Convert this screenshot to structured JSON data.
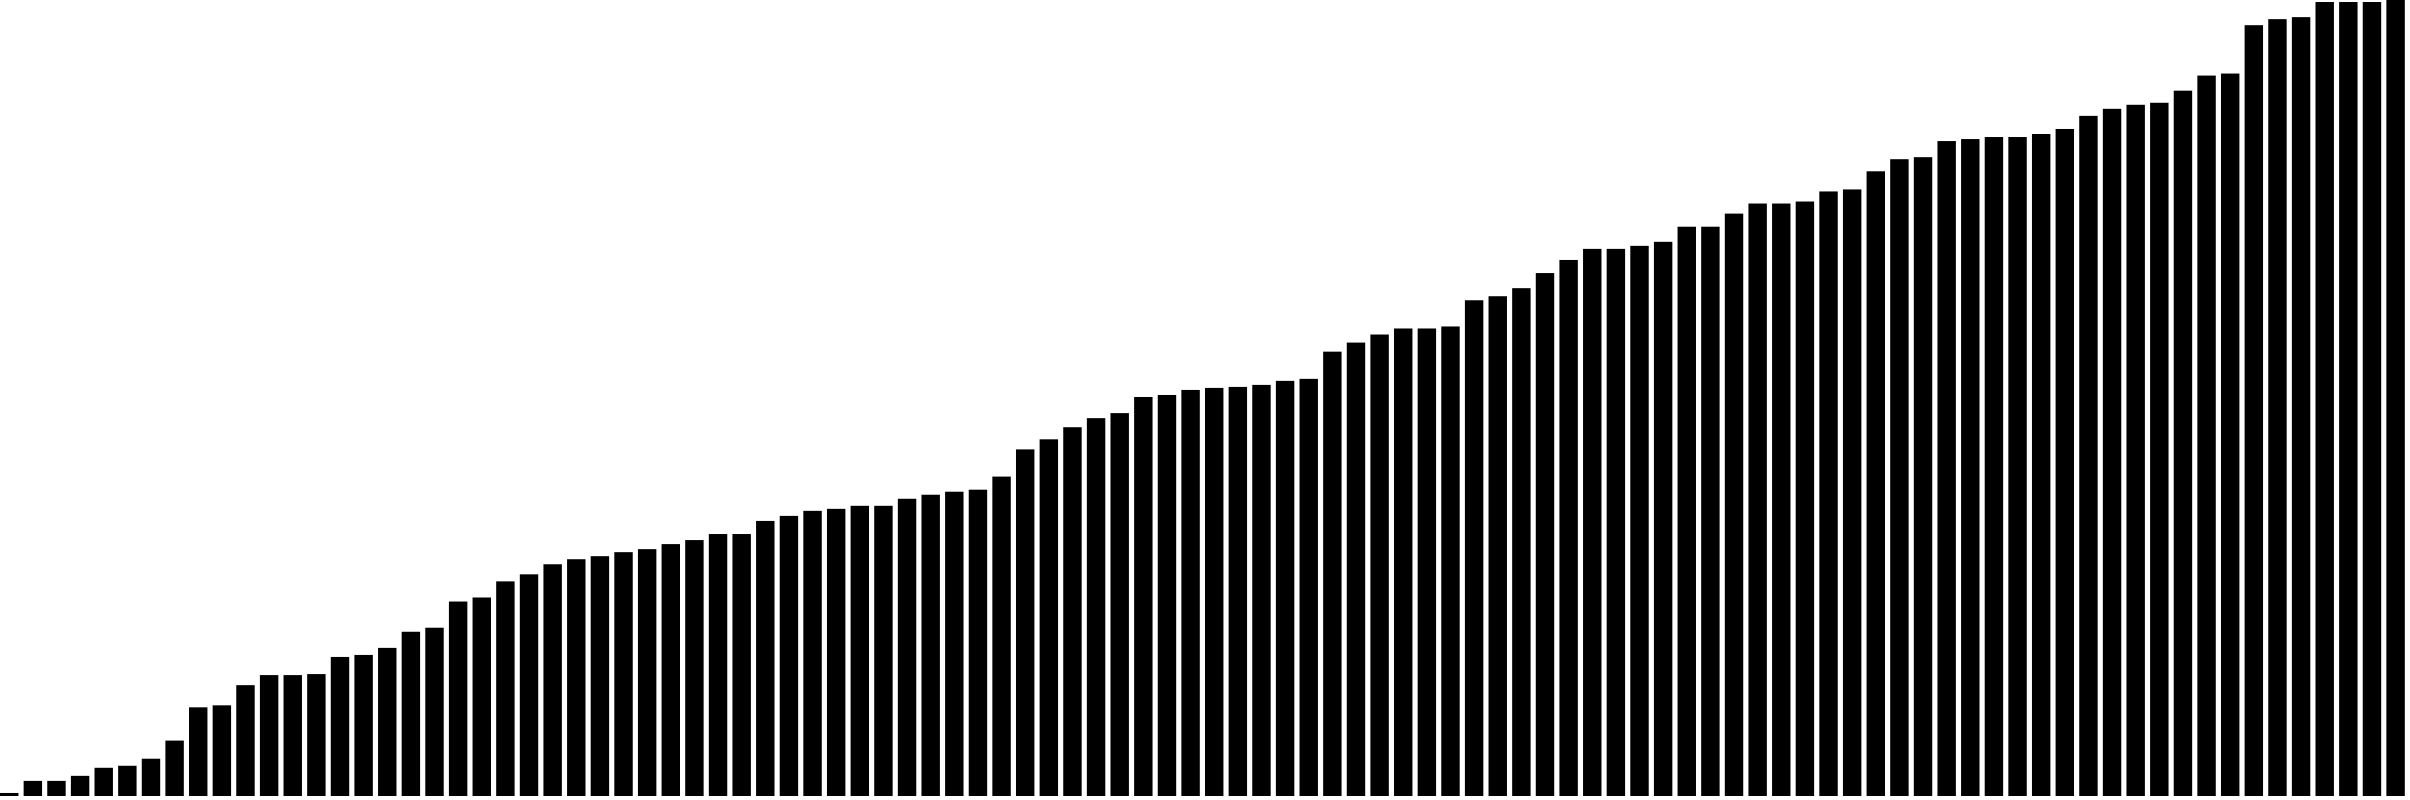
{
  "chart_data": {
    "type": "bar",
    "title": "",
    "xlabel": "",
    "ylabel": "",
    "grid": false,
    "legend": "none",
    "ylim": [
      0,
      790
    ],
    "bar_color": "#000000",
    "background_color": "#ffffff",
    "values": [
      3,
      15,
      15,
      20,
      28,
      30,
      37,
      55,
      88,
      90,
      110,
      120,
      120,
      121,
      138,
      140,
      147,
      163,
      167,
      193,
      197,
      213,
      220,
      230,
      235,
      238,
      242,
      245,
      250,
      254,
      260,
      260,
      273,
      278,
      283,
      285,
      288,
      288,
      295,
      299,
      302,
      304,
      317,
      344,
      354,
      366,
      375,
      380,
      396,
      398,
      403,
      405,
      406,
      408,
      412,
      414,
      441,
      450,
      458,
      464,
      464,
      466,
      492,
      496,
      504,
      519,
      532,
      543,
      543,
      546,
      550,
      565,
      565,
      578,
      588,
      588,
      590,
      600,
      602,
      620,
      632,
      634,
      650,
      652,
      654,
      654,
      657,
      662,
      675,
      682,
      686,
      688,
      700,
      715,
      717,
      765,
      771,
      773,
      788,
      788,
      788,
      795
    ]
  }
}
